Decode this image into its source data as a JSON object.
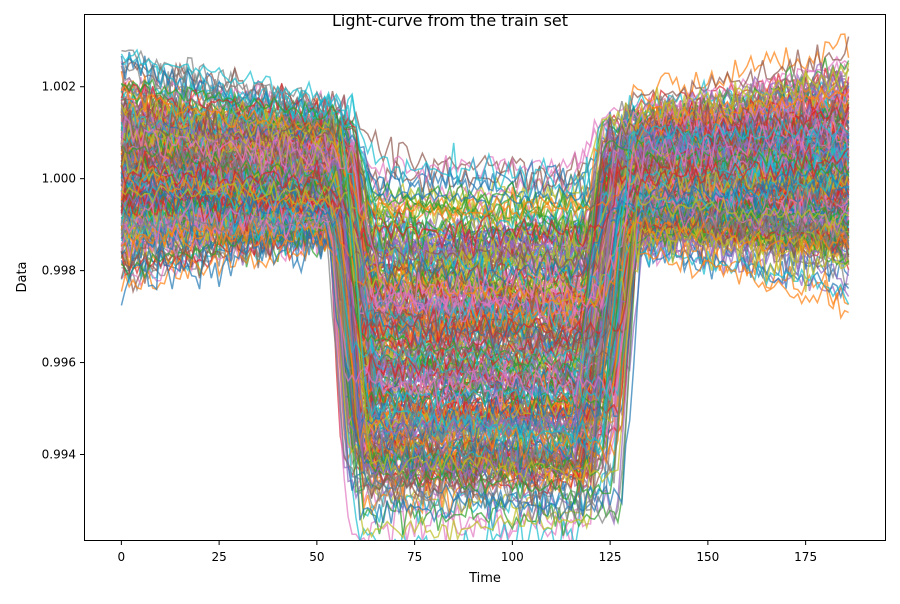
{
  "chart_data": {
    "type": "line",
    "title": "Light-curve from the train set",
    "xlabel": "Time",
    "ylabel": "Data",
    "xlim": [
      -9.3,
      195.3
    ],
    "ylim": [
      0.99214,
      1.00356
    ],
    "x_ticks": [
      0,
      25,
      50,
      75,
      100,
      125,
      150,
      175
    ],
    "y_ticks": [
      0.994,
      0.996,
      0.998,
      1.0,
      1.002
    ],
    "y_tick_labels": [
      "0.994",
      "0.996",
      "0.998",
      "1.000",
      "1.002"
    ],
    "grid": false,
    "legend": "none",
    "n_series_drawn": 300,
    "time_points": 187,
    "transit": {
      "ingress_start_range": [
        52,
        60
      ],
      "egress_end_range": [
        122,
        134
      ],
      "depth_range": [
        0.0008,
        0.0068
      ],
      "noise_sigma": 0.00018
    },
    "baseline_range": [
      0.9988,
      1.0013
    ],
    "palette": [
      "#1f77b4",
      "#ff7f0e",
      "#2ca02c",
      "#d62728",
      "#9467bd",
      "#8c564b",
      "#e377c2",
      "#7f7f7f",
      "#bcbd22",
      "#17becf"
    ]
  }
}
